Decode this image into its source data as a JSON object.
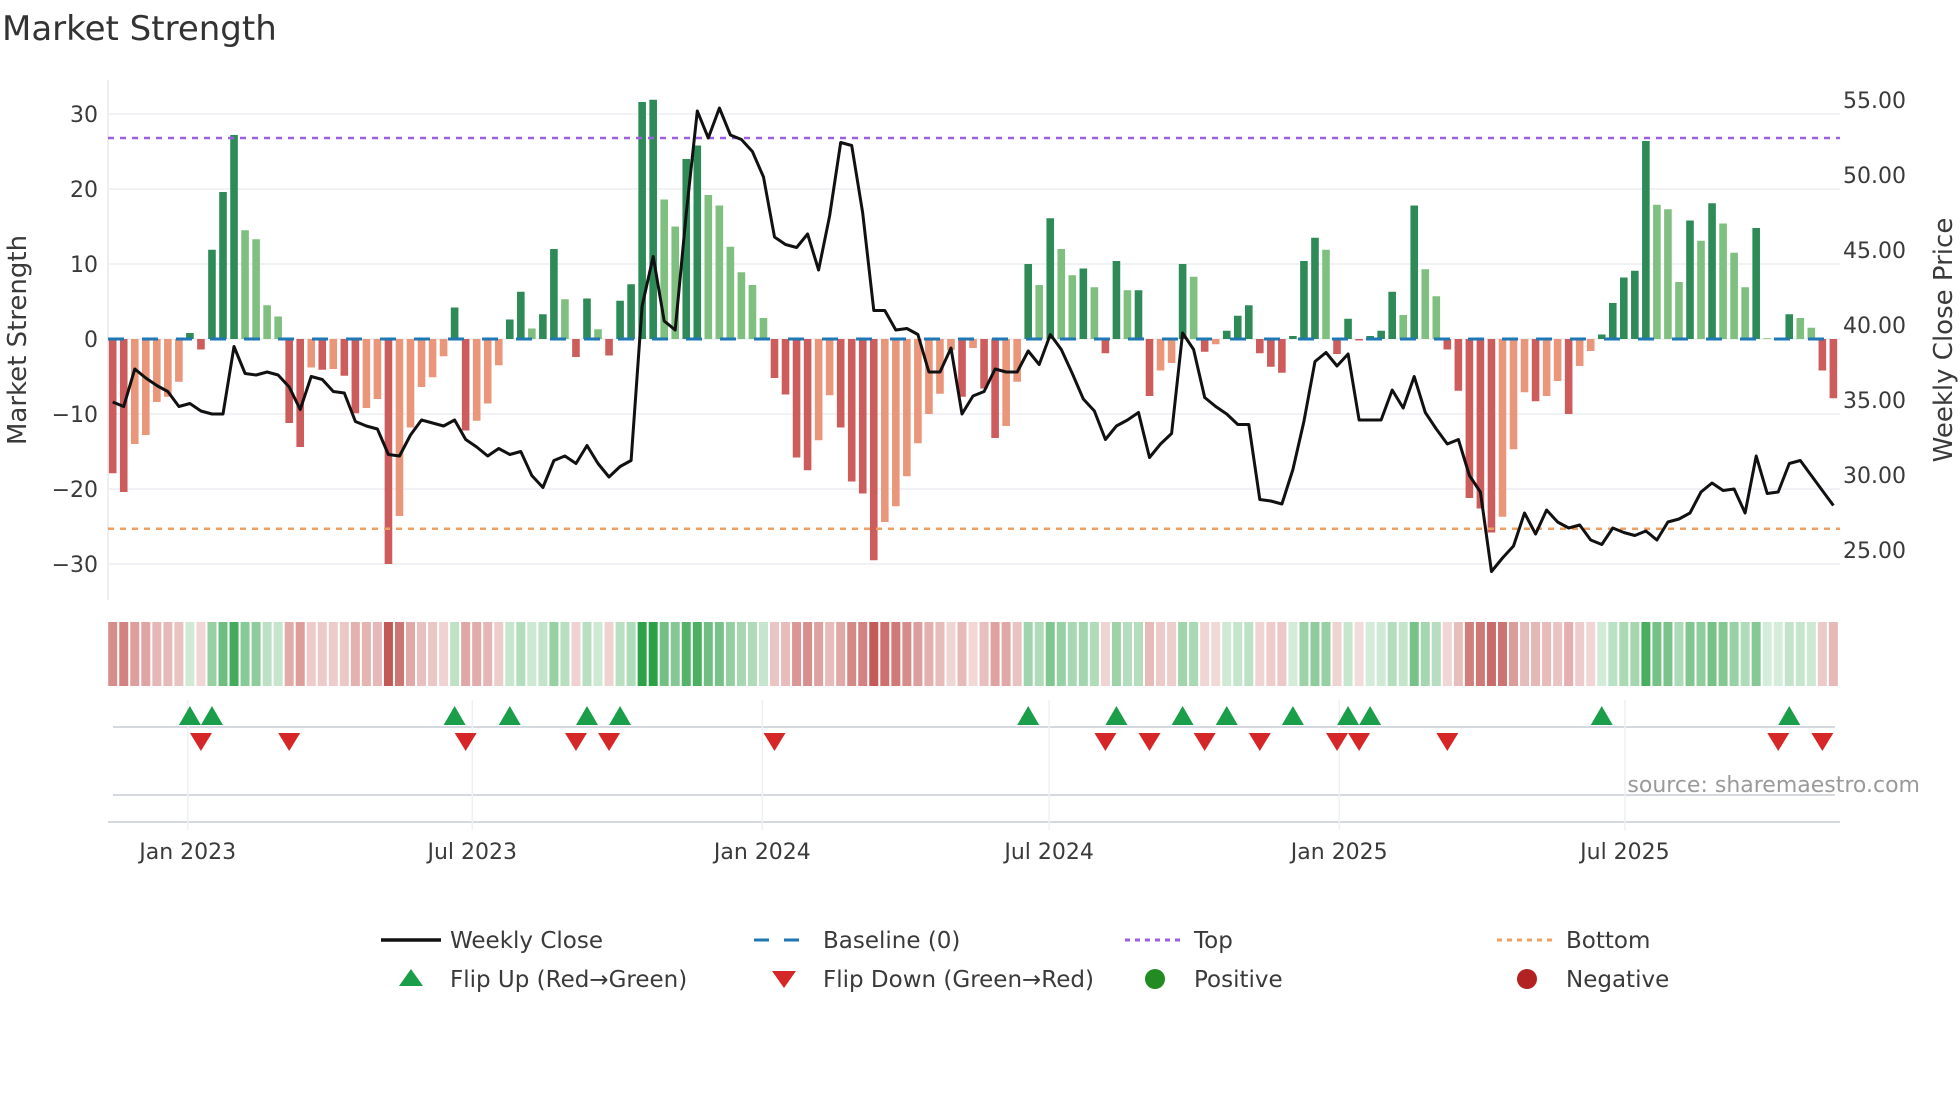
{
  "chart_data": {
    "type": "bar",
    "title": "Market Strength",
    "ylabel": "Market Strength",
    "y2label": "Weekly Close Price",
    "source": "source: sharemaestro.com",
    "start_week": "2022-11-14",
    "frequency": "weekly",
    "ylim": [
      -34.5,
      34.5
    ],
    "y2lim": [
      22.75,
      57.25
    ],
    "y_ticks": [
      {
        "v": 30,
        "label": "30"
      },
      {
        "v": 20,
        "label": "20"
      },
      {
        "v": 10,
        "label": "10"
      },
      {
        "v": 0,
        "label": "0"
      },
      {
        "v": -10,
        "label": "−10"
      },
      {
        "v": -20,
        "label": "−20"
      },
      {
        "v": -30,
        "label": "−30"
      }
    ],
    "y2_ticks": [
      {
        "v": 55,
        "label": "55.00"
      },
      {
        "v": 50,
        "label": "50.00"
      },
      {
        "v": 45,
        "label": "45.00"
      },
      {
        "v": 40,
        "label": "40.00"
      },
      {
        "v": 35,
        "label": "35.00"
      },
      {
        "v": 30,
        "label": "30.00"
      },
      {
        "v": 25,
        "label": "25.00"
      }
    ],
    "x_ticks": [
      {
        "week": 6.8,
        "label": "Jan 2023"
      },
      {
        "week": 32.6,
        "label": "Jul 2023"
      },
      {
        "week": 58.9,
        "label": "Jan 2024"
      },
      {
        "week": 84.9,
        "label": "Jul 2024"
      },
      {
        "week": 111.2,
        "label": "Jan 2025"
      },
      {
        "week": 137.1,
        "label": "Jul 2025"
      }
    ],
    "top_level": 26.8,
    "bottom_level": -25.3,
    "baseline": 0,
    "market_strength": [
      -17.9,
      -20.4,
      -14.0,
      -12.8,
      -8.4,
      -7.7,
      -5.7,
      0.8,
      -1.4,
      11.9,
      19.6,
      27.2,
      14.5,
      13.3,
      4.5,
      3.0,
      -11.2,
      -14.4,
      -3.8,
      -4.1,
      -4.0,
      -4.9,
      -9.9,
      -9.2,
      -8.0,
      -30.0,
      -23.6,
      -11.8,
      -6.4,
      -5.1,
      -2.3,
      4.2,
      -12.2,
      -10.9,
      -8.6,
      -3.5,
      2.6,
      6.3,
      1.4,
      3.3,
      12.0,
      5.3,
      -2.4,
      5.4,
      1.3,
      -2.2,
      5.1,
      7.3,
      31.6,
      31.9,
      18.6,
      15.0,
      24.0,
      25.8,
      19.2,
      17.8,
      12.3,
      8.9,
      7.2,
      2.8,
      -5.2,
      -7.4,
      -15.8,
      -17.5,
      -13.5,
      -7.5,
      -11.8,
      -19.0,
      -20.6,
      -29.5,
      -24.4,
      -22.3,
      -18.3,
      -13.9,
      -10.0,
      -7.3,
      -1.5,
      -7.7,
      -1.2,
      -6.6,
      -13.2,
      -11.6,
      -5.7,
      10.0,
      7.2,
      16.1,
      12.0,
      8.5,
      9.4,
      6.9,
      -1.9,
      10.4,
      6.5,
      6.5,
      -7.6,
      -4.2,
      -3.2,
      10.0,
      8.3,
      -1.7,
      -0.7,
      1.1,
      3.1,
      4.5,
      -1.9,
      -3.7,
      -4.5,
      0.4,
      10.4,
      13.5,
      11.9,
      -2.0,
      2.7,
      -0.2,
      0.4,
      1.1,
      6.3,
      3.2,
      17.8,
      9.3,
      5.7,
      -1.4,
      -6.9,
      -21.2,
      -22.6,
      -25.8,
      -23.7,
      -14.7,
      -7.1,
      -8.3,
      -7.6,
      -5.6,
      -10.0,
      -3.6,
      -1.6,
      0.6,
      4.8,
      8.2,
      9.1,
      26.4,
      17.9,
      17.3,
      7.6,
      15.8,
      13.1,
      18.1,
      15.4,
      11.5,
      6.9,
      14.8,
      0.1,
      0.1,
      3.3,
      2.8,
      1.5,
      -4.2,
      -7.9
    ],
    "weekly_close": [
      35.8,
      35.5,
      38.0,
      37.4,
      36.9,
      36.5,
      35.5,
      35.7,
      35.2,
      35.0,
      35.0,
      39.5,
      37.7,
      37.6,
      37.8,
      37.6,
      36.8,
      35.3,
      37.5,
      37.3,
      36.5,
      36.4,
      34.5,
      34.2,
      34.0,
      32.3,
      32.2,
      33.6,
      34.6,
      34.4,
      34.2,
      34.6,
      33.3,
      32.8,
      32.2,
      32.7,
      32.3,
      32.5,
      30.9,
      30.1,
      31.9,
      32.2,
      31.7,
      32.9,
      31.7,
      30.8,
      31.5,
      31.9,
      42.2,
      45.5,
      41.2,
      40.6,
      48.4,
      55.2,
      53.4,
      55.4,
      53.6,
      53.3,
      52.5,
      50.8,
      46.8,
      46.3,
      46.1,
      47.0,
      44.6,
      48.2,
      53.1,
      52.9,
      48.4,
      41.9,
      41.9,
      40.6,
      40.7,
      40.3,
      37.8,
      37.8,
      39.4,
      35.0,
      36.2,
      36.5,
      38.0,
      37.8,
      37.8,
      39.2,
      38.3,
      40.3,
      39.3,
      37.7,
      36.0,
      35.2,
      33.3,
      34.2,
      34.6,
      35.1,
      32.1,
      33.0,
      33.7,
      40.4,
      39.3,
      36.1,
      35.5,
      35.0,
      34.3,
      34.3,
      29.3,
      29.2,
      29.0,
      31.3,
      34.5,
      38.5,
      39.1,
      38.2,
      39.0,
      34.6,
      34.6,
      34.6,
      36.6,
      35.4,
      37.5,
      35.1,
      34.0,
      33.0,
      33.3,
      30.9,
      29.8,
      24.5,
      25.4,
      26.2,
      28.4,
      27.0,
      28.6,
      27.8,
      27.4,
      27.6,
      26.6,
      26.3,
      27.4,
      27.1,
      26.9,
      27.2,
      26.6,
      27.8,
      28.0,
      28.4,
      29.8,
      30.4,
      29.9,
      30.0,
      28.4,
      32.2,
      29.7,
      29.8,
      31.7,
      31.9,
      30.9,
      29.9,
      28.9
    ],
    "flip_up_weeks": [
      7,
      9,
      31,
      36,
      43,
      46,
      83,
      91,
      97,
      101,
      107,
      112,
      114,
      135,
      152
    ],
    "flip_down_weeks": [
      8,
      16,
      32,
      42,
      45,
      60,
      90,
      94,
      99,
      104,
      111,
      113,
      121,
      151,
      155
    ],
    "legend": {
      "placement": "bottom",
      "items": [
        {
          "key": "close",
          "label": "Weekly Close"
        },
        {
          "key": "baseline",
          "label": "Baseline (0)"
        },
        {
          "key": "top",
          "label": "Top"
        },
        {
          "key": "bottom",
          "label": "Bottom"
        },
        {
          "key": "flip_up",
          "label": "Flip Up (Red→Green)"
        },
        {
          "key": "flip_down",
          "label": "Flip Down (Green→Red)"
        },
        {
          "key": "positive",
          "label": "Positive"
        },
        {
          "key": "negative",
          "label": "Negative"
        }
      ]
    },
    "colors": {
      "pos_strong": "#2e8b57",
      "pos_weak": "#7fbf7f",
      "neg_strong": "#cd5c5c",
      "neg_weak": "#e9967a",
      "close": "#111111",
      "baseline": "#1f77b4",
      "top": "#9b5fe0",
      "bottom": "#f0a060",
      "flip_up": "#1a9e4a",
      "flip_down": "#d62728",
      "positive": "#228b22",
      "negative": "#b22222",
      "grid": "#eceef3"
    }
  }
}
